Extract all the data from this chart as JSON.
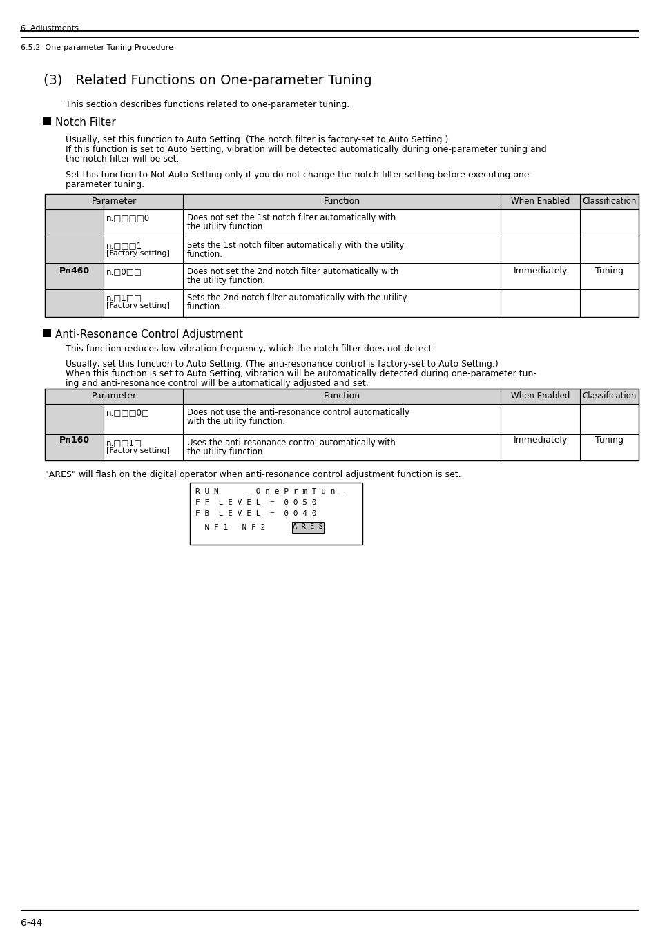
{
  "page_bg": "#ffffff",
  "header_text1": "6  Adjustments",
  "header_text2": "6.5.2  One-parameter Tuning Procedure",
  "section_title": "(3)   Related Functions on One-parameter Tuning",
  "intro_text": "This section describes functions related to one-parameter tuning.",
  "notch_heading": "Notch Filter",
  "notch_para1a": "Usually, set this function to Auto Setting. (The notch filter is factory-set to Auto Setting.)",
  "notch_para1b": "If this function is set to Auto Setting, vibration will be detected automatically during one-parameter tuning and",
  "notch_para1c": "the notch filter will be set.",
  "notch_para2a": "Set this function to Not Auto Setting only if you do not change the notch filter setting before executing one-",
  "notch_para2b": "parameter tuning.",
  "table1_param_label": "Pn460",
  "table1_rows": [
    {
      "param": "n.□□□□0",
      "param2": "",
      "function1": "Does not set the 1st notch filter automatically with",
      "function2": "the utility function."
    },
    {
      "param": "n.□□□1",
      "param2": "[Factory setting]",
      "function1": "Sets the 1st notch filter automatically with the utility",
      "function2": "function."
    },
    {
      "param": "n.□0□□",
      "param2": "",
      "function1": "Does not set the 2nd notch filter automatically with",
      "function2": "the utility function."
    },
    {
      "param": "n.□1□□",
      "param2": "[Factory setting]",
      "function1": "Sets the 2nd notch filter automatically with the utility",
      "function2": "function."
    }
  ],
  "table1_when_enabled": "Immediately",
  "table1_classification": "Tuning",
  "anti_heading": "Anti-Resonance Control Adjustment",
  "anti_para1": "This function reduces low vibration frequency, which the notch filter does not detect.",
  "anti_para2a": "Usually, set this function to Auto Setting. (The anti-resonance control is factory-set to Auto Setting.)",
  "anti_para2b": "When this function is set to Auto Setting, vibration will be automatically detected during one-parameter tun-",
  "anti_para2c": "ing and anti-resonance control will be automatically adjusted and set.",
  "table2_param_label": "Pn160",
  "table2_rows": [
    {
      "param": "n.□□□0□",
      "param2": "",
      "function1": "Does not use the anti-resonance control automatically",
      "function2": "with the utility function."
    },
    {
      "param": "n.□□1□",
      "param2": "[Factory setting]",
      "function1": "Uses the anti-resonance control automatically with",
      "function2": "the utility function."
    }
  ],
  "table2_when_enabled": "Immediately",
  "table2_classification": "Tuning",
  "ares_note": "\"ARES\" will flash on the digital operator when anti-resonance control adjustment function is set.",
  "display_line1": "R U N      — O n e P r m T u n —",
  "display_line2": "F F  L E V E L  =  0 0 5 0",
  "display_line3": "F B  L E V E L  =  0 0 4 0",
  "display_line4": "",
  "display_line5": "  N F 1   N F 2",
  "display_ares": "A R E S",
  "footer_text": "6-44"
}
